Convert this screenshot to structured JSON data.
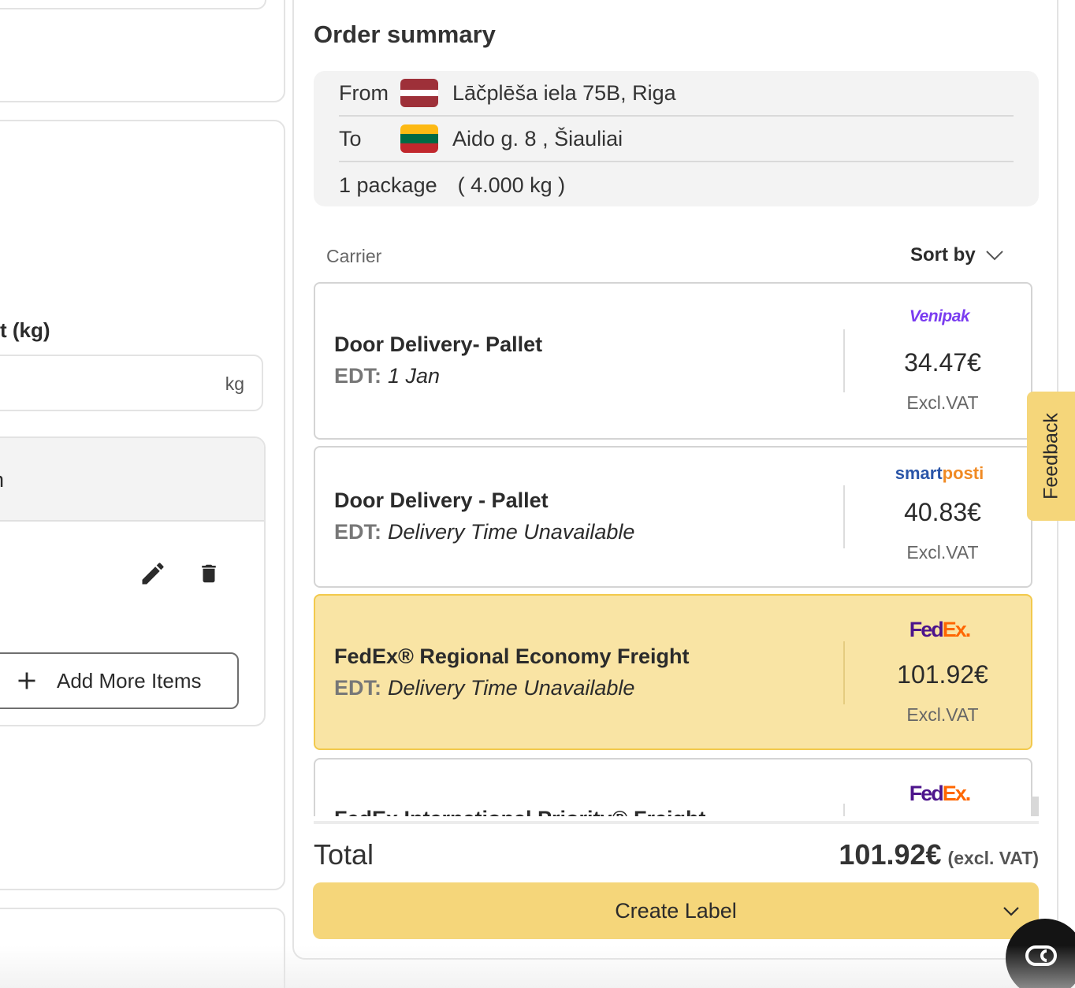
{
  "form": {
    "weight_label": "t (kg)",
    "weight_unit": "kg",
    "items_header": "n",
    "add_more_label": "Add More Items"
  },
  "summary": {
    "title": "Order summary",
    "from_label": "From",
    "from_address": "Lāčplēša iela 75B, Riga",
    "to_label": "To",
    "to_address": "Aido g. 8 , Šiauliai",
    "package_count": "1 package",
    "package_weight": "( 4.000 kg )",
    "carrier_header": "Carrier",
    "sort_label": "Sort by"
  },
  "offers": [
    {
      "name": "Door Delivery- Pallet",
      "edt_label": "EDT:",
      "edt_value": "1 Jan",
      "carrier_logo": "Venipak",
      "price": "34.47€",
      "vat": "Excl.VAT",
      "selected": false
    },
    {
      "name": "Door Delivery - Pallet",
      "edt_label": "EDT:",
      "edt_value": "Delivery Time Unavailable",
      "carrier_logo_a": "smart",
      "carrier_logo_b": "posti",
      "price": "40.83€",
      "vat": "Excl.VAT",
      "selected": false
    },
    {
      "name": "FedEx® Regional Economy Freight",
      "edt_label": "EDT:",
      "edt_value": "Delivery Time Unavailable",
      "carrier_logo_a": "Fed",
      "carrier_logo_b": "Ex.",
      "price": "101.92€",
      "vat": "Excl.VAT",
      "selected": true
    },
    {
      "name": "FedEx International Priority® Freight",
      "carrier_logo_a": "Fed",
      "carrier_logo_b": "Ex.",
      "selected": false
    }
  ],
  "footer": {
    "total_label": "Total",
    "total_value": "101.92€",
    "total_note": "(excl. VAT)",
    "create_label": "Create Label"
  },
  "feedback_label": "Feedback",
  "colors": {
    "accent": "#f5d67a",
    "selected_bg": "#f9e4a4",
    "selected_border": "#f2c94c",
    "latvia_flag": [
      "#9e3039",
      "#ffffff",
      "#9e3039"
    ],
    "lithuania_flag": [
      "#fdb913",
      "#006a44",
      "#c1272d"
    ]
  },
  "icons": {
    "edit": "pencil-icon",
    "delete": "trash-icon",
    "add": "plus-icon",
    "sort": "chevron-down-icon",
    "create_dropdown": "chevron-down-icon",
    "chat": "chat-bubble-icon"
  }
}
